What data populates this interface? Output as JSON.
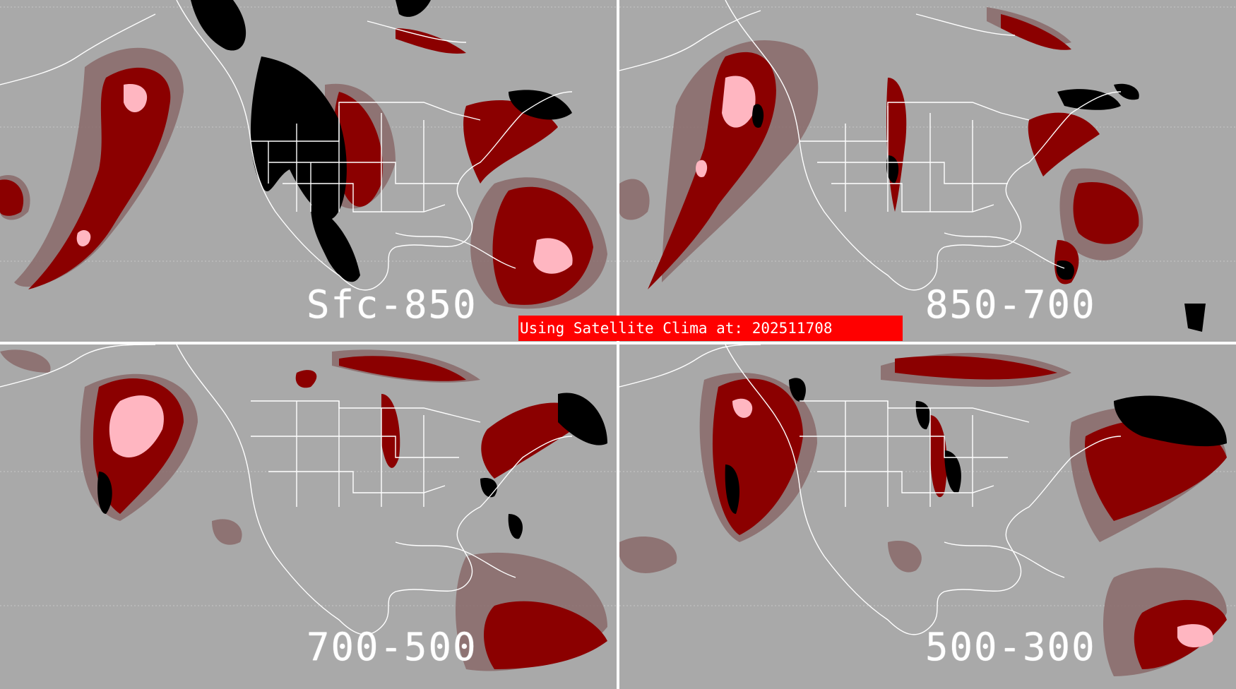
{
  "panels": [
    {
      "label": "Sfc-850"
    },
    {
      "label": "850-700"
    },
    {
      "label": "700-500"
    },
    {
      "label": "500-300"
    }
  ],
  "banner": {
    "text": "Using Satellite Clima at: 202511708"
  },
  "colors": {
    "background": "#a9a9a9",
    "dark_red": "#8b0000",
    "muted_rose": "#8a6a6a",
    "pink": "#ffb6c1",
    "black": "#000000",
    "white_borders": "#ffffff",
    "banner": "#ff0000"
  }
}
